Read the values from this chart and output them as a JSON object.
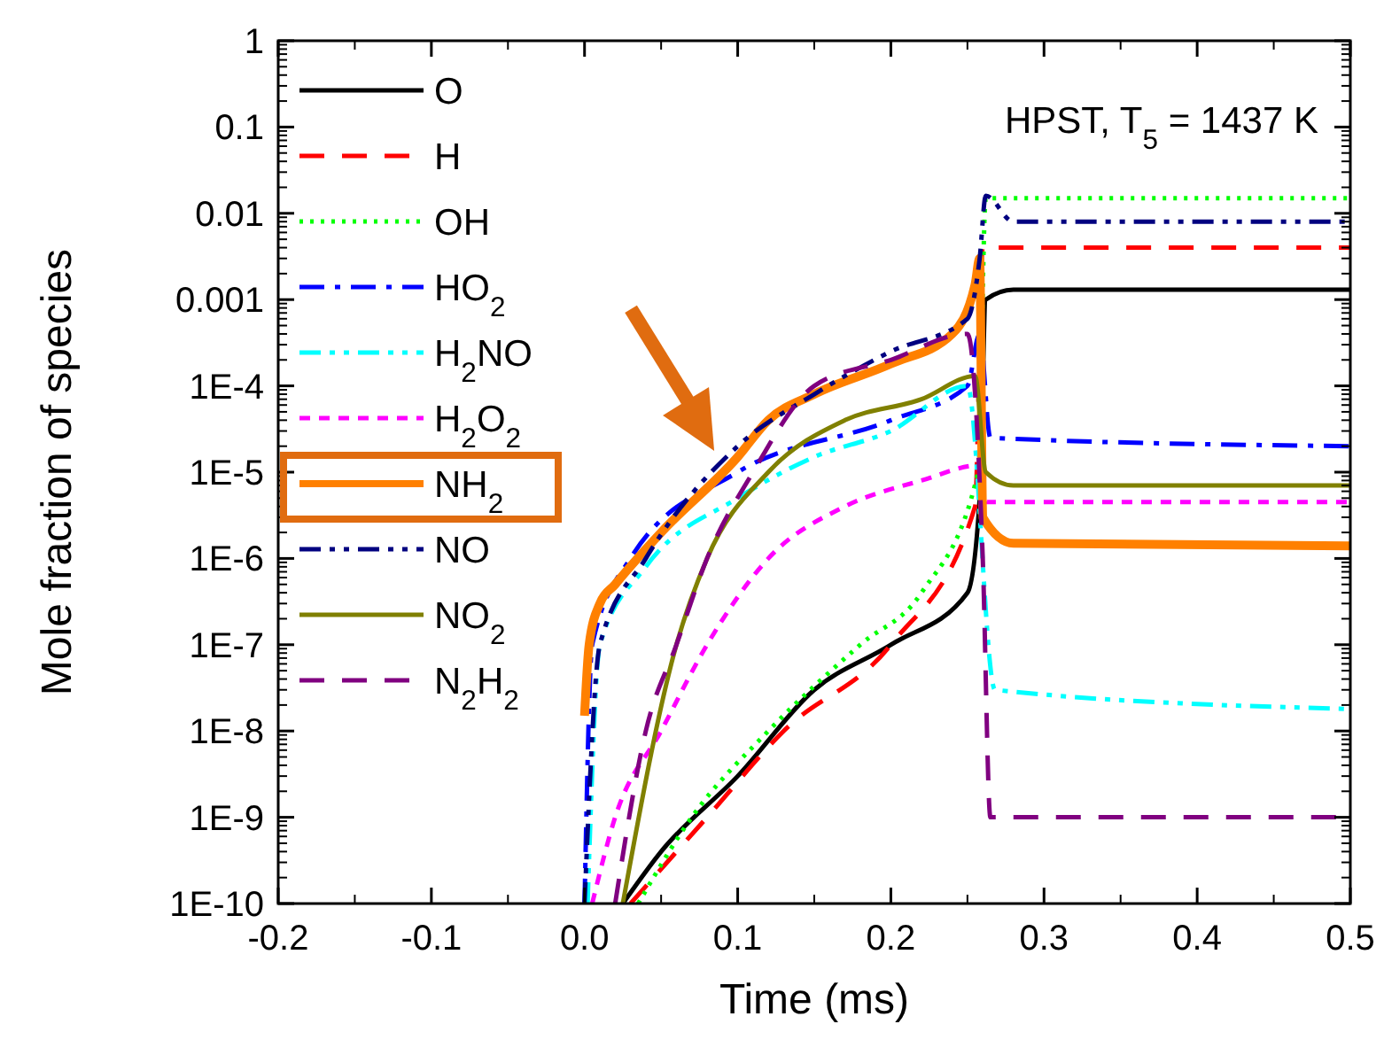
{
  "chart_data": {
    "type": "line",
    "xlabel": "Time (ms)",
    "ylabel": "Mole fraction of species",
    "log": "y",
    "annotations": [
      "HPST, T$_{5}$ = 1437 K"
    ],
    "xlim": [
      -0.2,
      0.5
    ],
    "ylim": [
      1e-10,
      1
    ],
    "xticks": [
      -0.2,
      -0.1,
      {
        "value": 0,
        "label": "0.0"
      },
      0.1,
      0.2,
      0.3,
      0.4,
      0.5
    ],
    "yticks": [
      {
        "value": 1e-10,
        "label": "1E-10"
      },
      {
        "value": 1e-09,
        "label": "1E-9"
      },
      {
        "value": 1e-08,
        "label": "1E-8"
      },
      {
        "value": 1e-07,
        "label": "1E-7"
      },
      {
        "value": 1e-06,
        "label": "1E-6"
      },
      {
        "value": 1e-05,
        "label": "1E-5"
      },
      {
        "value": 0.0001,
        "label": "1E-4"
      },
      0.001,
      0.01,
      0.1,
      1
    ],
    "legend": "top left",
    "grid": false,
    "series": [
      {
        "name": "O",
        "color": "#000000",
        "line_style": "solid",
        "x": [
          0.025,
          0.05,
          0.1,
          0.15,
          0.2,
          0.25,
          0.258,
          0.262,
          0.28,
          0.5
        ],
        "values": [
          1e-10,
          4e-10,
          3e-09,
          3e-08,
          1e-07,
          4e-07,
          5e-06,
          0.001,
          0.0013,
          0.0013
        ]
      },
      {
        "name": "H",
        "color": "#ff0000",
        "line_style": "dashed",
        "x": [
          0.03,
          0.08,
          0.13,
          0.2,
          0.255,
          0.26,
          0.5
        ],
        "values": [
          1e-10,
          1e-09,
          1e-08,
          1e-07,
          4e-06,
          0.004,
          0.004
        ]
      },
      {
        "name": "OH",
        "color": "#00ff00",
        "line_style": "dotted",
        "x": [
          0.035,
          0.07,
          0.12,
          0.18,
          0.22,
          0.257,
          0.262,
          0.5
        ],
        "values": [
          1e-10,
          1e-09,
          1e-08,
          1e-07,
          4e-07,
          1e-05,
          0.015,
          0.015
        ]
      },
      {
        "name": "HO$_{2}$",
        "color": "#0000ff",
        "line_style": "dashdot",
        "x": [
          0,
          0.005,
          0.03,
          0.1,
          0.2,
          0.25,
          0.258,
          0.265,
          0.5
        ],
        "values": [
          1e-10,
          1e-07,
          1e-06,
          1e-05,
          4e-05,
          0.0001,
          0.0004,
          2.5e-05,
          2e-05
        ]
      },
      {
        "name": "H$_{2}$NO",
        "color": "#00ffff",
        "line_style": "dashdotdot",
        "x": [
          0.002,
          0.01,
          0.04,
          0.1,
          0.15,
          0.2,
          0.25,
          0.268,
          0.5
        ],
        "values": [
          1e-10,
          1e-07,
          8e-07,
          5e-06,
          1.5e-05,
          3e-05,
          0.0001,
          3e-08,
          1.8e-08
        ]
      },
      {
        "name": "H$_{2}$O$_{2}$",
        "color": "#ff00ff",
        "line_style": "shortdash",
        "x": [
          0.005,
          0.02,
          0.05,
          0.08,
          0.12,
          0.17,
          0.22,
          0.258,
          0.262,
          0.5
        ],
        "values": [
          1e-10,
          1e-09,
          1e-08,
          1e-07,
          1e-06,
          4e-06,
          8e-06,
          1.2e-05,
          4.5e-06,
          4.5e-06
        ]
      },
      {
        "name": "NH$_{2}$",
        "color": "#ff8000",
        "line_style": "solid",
        "x": [
          0,
          0.003,
          0.01,
          0.02,
          0.05,
          0.1,
          0.12,
          0.15,
          0.2,
          0.24,
          0.255,
          0.258,
          0.26,
          0.28,
          0.5
        ],
        "values": [
          1.5e-08,
          1e-07,
          3e-07,
          5e-07,
          2e-06,
          1.5e-05,
          4e-05,
          8e-05,
          0.00018,
          0.0004,
          0.0015,
          0.003,
          3e-06,
          1.5e-06,
          1.4e-06
        ]
      },
      {
        "name": "NO",
        "color": "#000080",
        "line_style": "dashdotdot",
        "x": [
          0,
          0.01,
          0.04,
          0.1,
          0.15,
          0.2,
          0.25,
          0.258,
          0.262,
          0.28,
          0.5
        ],
        "values": [
          1e-10,
          1e-07,
          1e-06,
          2e-05,
          8e-05,
          0.00025,
          0.0006,
          0.003,
          0.016,
          0.008,
          0.008
        ]
      },
      {
        "name": "NO$_{2}$",
        "color": "#808000",
        "line_style": "solid",
        "x": [
          0.025,
          0.06,
          0.08,
          0.12,
          0.17,
          0.22,
          0.255,
          0.262,
          0.28,
          0.5
        ],
        "values": [
          1e-10,
          1e-07,
          1e-06,
          1e-05,
          4e-05,
          7e-05,
          0.00013,
          1e-05,
          7e-06,
          7e-06
        ]
      },
      {
        "name": "N$_{2}$H$_{2}$",
        "color": "#800080",
        "line_style": "dashed",
        "x": [
          0.02,
          0.04,
          0.06,
          0.08,
          0.11,
          0.15,
          0.2,
          0.25,
          0.26,
          0.265,
          0.5
        ],
        "values": [
          1e-10,
          1e-08,
          1e-07,
          1e-06,
          1e-05,
          0.0001,
          0.0002,
          0.0004,
          1e-06,
          1e-09,
          1e-09
        ]
      }
    ]
  }
}
